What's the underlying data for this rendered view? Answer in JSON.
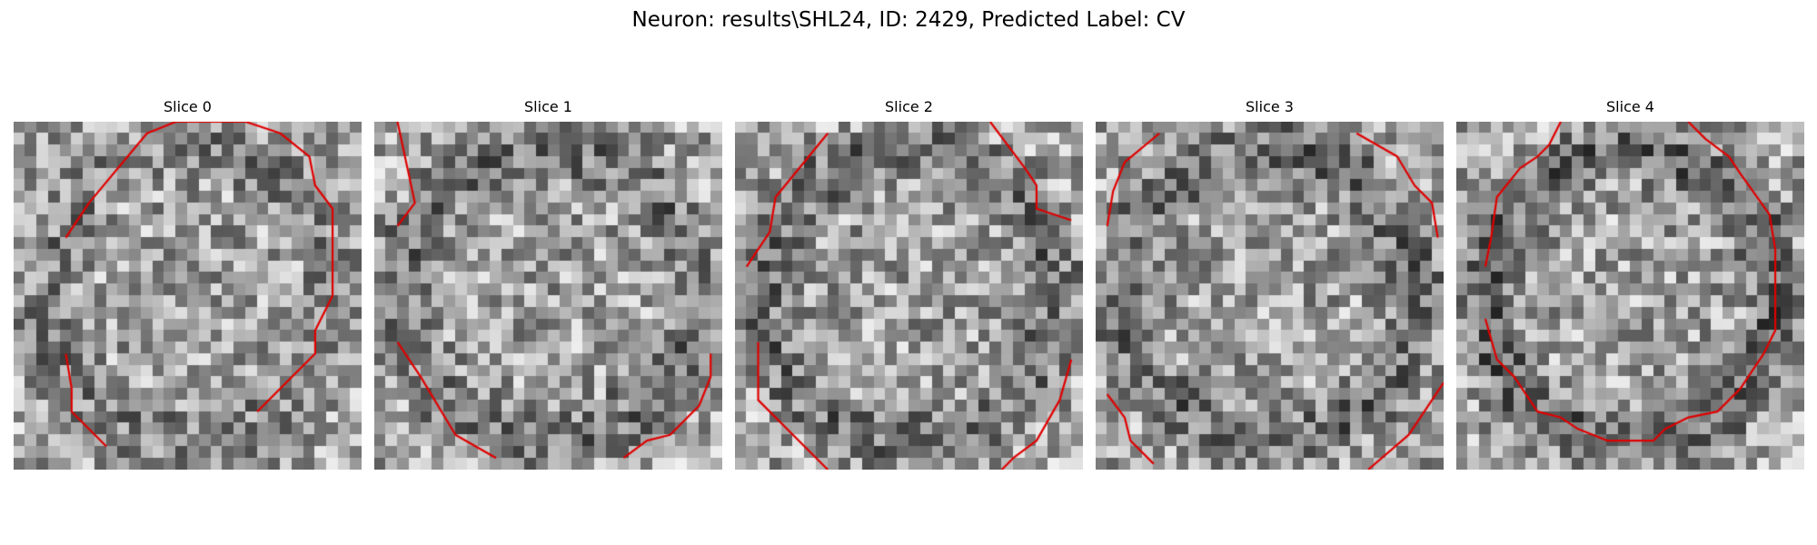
{
  "figure": {
    "title": "Neuron: results\\SHL24, ID: 2429, Predicted Label: CV"
  },
  "panels": [
    {
      "title": "Slice 0",
      "seed": 1,
      "dark_ring": 0.25,
      "contour": [
        [
          7.5,
          27.5
        ],
        [
          4.5,
          24.5
        ],
        [
          4.5,
          22.5
        ],
        [
          4.0,
          19.5
        ],
        [
          4.0,
          9.5
        ],
        [
          6.0,
          6.5
        ],
        [
          11.0,
          0.5
        ],
        [
          13.5,
          -0.5
        ],
        [
          19.5,
          -0.5
        ],
        [
          22.5,
          0.5
        ],
        [
          25.0,
          2.5
        ],
        [
          25.5,
          5.0
        ],
        [
          27.0,
          7.0
        ],
        [
          27.0,
          14.5
        ],
        [
          25.5,
          17.5
        ],
        [
          25.5,
          19.5
        ],
        [
          20.5,
          24.5
        ]
      ]
    },
    {
      "title": "Slice 1",
      "seed": 2,
      "dark_ring": 0.45,
      "contour": [
        [
          1.5,
          -0.5
        ],
        [
          3.0,
          6.5
        ],
        [
          1.5,
          8.5
        ],
        [
          1.5,
          18.5
        ],
        [
          3.5,
          21.5
        ],
        [
          6.5,
          26.5
        ],
        [
          10.0,
          28.5
        ],
        [
          21.0,
          28.5
        ],
        [
          23.0,
          27.0
        ],
        [
          25.0,
          26.5
        ],
        [
          26.5,
          25.0
        ],
        [
          27.5,
          24.0
        ],
        [
          28.5,
          21.5
        ],
        [
          28.5,
          19.5
        ]
      ]
    },
    {
      "title": "Slice 2",
      "seed": 3,
      "dark_ring": 0.5,
      "contour": [
        [
          0.5,
          12.0
        ],
        [
          2.5,
          9.0
        ],
        [
          3.0,
          6.0
        ],
        [
          7.5,
          0.5
        ],
        [
          7.5,
          29.5
        ],
        [
          6.5,
          28.5
        ],
        [
          4.5,
          26.5
        ],
        [
          1.5,
          23.5
        ],
        [
          1.5,
          18.5
        ],
        [
          1.5,
          -0.5
        ],
        [
          21.5,
          -0.5
        ],
        [
          24.5,
          3.5
        ],
        [
          25.5,
          5.0
        ],
        [
          25.5,
          7.0
        ],
        [
          28.5,
          8.0
        ],
        [
          22.5,
          29.5
        ],
        [
          23.5,
          28.5
        ],
        [
          25.5,
          27.0
        ],
        [
          27.5,
          23.5
        ],
        [
          28.5,
          20.0
        ]
      ]
    },
    {
      "title": "Slice 3",
      "seed": 4,
      "dark_ring": 0.55,
      "contour": [
        [
          0.5,
          8.5
        ],
        [
          1.0,
          5.5
        ],
        [
          2.0,
          3.0
        ],
        [
          5.0,
          0.5
        ],
        [
          22.0,
          0.5
        ],
        [
          25.5,
          2.5
        ],
        [
          27.0,
          5.0
        ],
        [
          28.5,
          6.5
        ],
        [
          29.0,
          9.5
        ],
        [
          0.5,
          23.0
        ],
        [
          2.0,
          25.0
        ],
        [
          2.5,
          27.0
        ],
        [
          4.5,
          29.0
        ],
        [
          23.0,
          29.5
        ],
        [
          26.5,
          26.5
        ],
        [
          28.5,
          23.5
        ],
        [
          29.5,
          22.0
        ]
      ]
    },
    {
      "title": "Slice 4",
      "seed": 5,
      "dark_ring": 0.75,
      "contour": [
        [
          2.0,
          12.0
        ],
        [
          2.5,
          9.5
        ],
        [
          3.0,
          6.0
        ],
        [
          5.0,
          3.5
        ],
        [
          6.5,
          2.5
        ],
        [
          7.5,
          1.5
        ],
        [
          8.5,
          -0.5
        ],
        [
          19.5,
          -0.5
        ],
        [
          21.0,
          1.0
        ],
        [
          23.0,
          2.5
        ],
        [
          24.0,
          4.0
        ],
        [
          26.5,
          7.5
        ],
        [
          27.0,
          10.5
        ],
        [
          27.0,
          17.5
        ],
        [
          26.0,
          19.5
        ],
        [
          24.0,
          22.5
        ],
        [
          22.0,
          24.5
        ],
        [
          19.5,
          25.0
        ],
        [
          17.5,
          26.0
        ],
        [
          16.5,
          27.0
        ],
        [
          12.5,
          27.0
        ],
        [
          10.0,
          26.0
        ],
        [
          8.5,
          25.0
        ],
        [
          6.5,
          24.5
        ],
        [
          4.5,
          21.5
        ],
        [
          3.0,
          20.0
        ],
        [
          2.0,
          16.5
        ]
      ]
    }
  ]
}
